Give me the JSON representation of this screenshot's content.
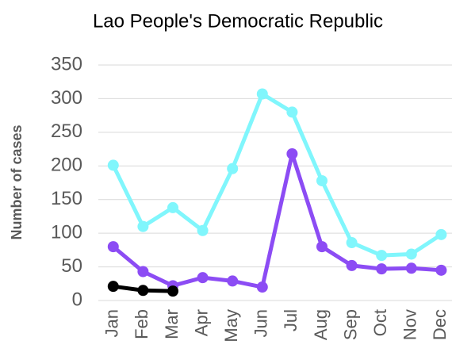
{
  "chart_data": {
    "type": "line",
    "title": "Lao People's Democratic Republic",
    "y_label": "Number of cases",
    "categories": [
      "Jan",
      "Feb",
      "Mar",
      "Apr",
      "May",
      "Jun",
      "Jul",
      "Aug",
      "Sep",
      "Oct",
      "Nov",
      "Dec"
    ],
    "series": [
      {
        "color": "#80f6fc",
        "values": [
          201,
          110,
          138,
          104,
          196,
          307,
          280,
          178,
          86,
          67,
          69,
          98
        ]
      },
      {
        "color": "#8c4cf4",
        "values": [
          80,
          43,
          22,
          34,
          29,
          20,
          218,
          80,
          52,
          47,
          48,
          45
        ]
      },
      {
        "color": "#000000",
        "values": [
          21,
          15,
          14,
          null,
          null,
          null,
          null,
          null,
          null,
          null,
          null,
          null
        ]
      }
    ],
    "ylim": [
      0,
      350
    ],
    "yticks": [
      0,
      50,
      100,
      150,
      200,
      250,
      300,
      350
    ],
    "grid": true
  }
}
